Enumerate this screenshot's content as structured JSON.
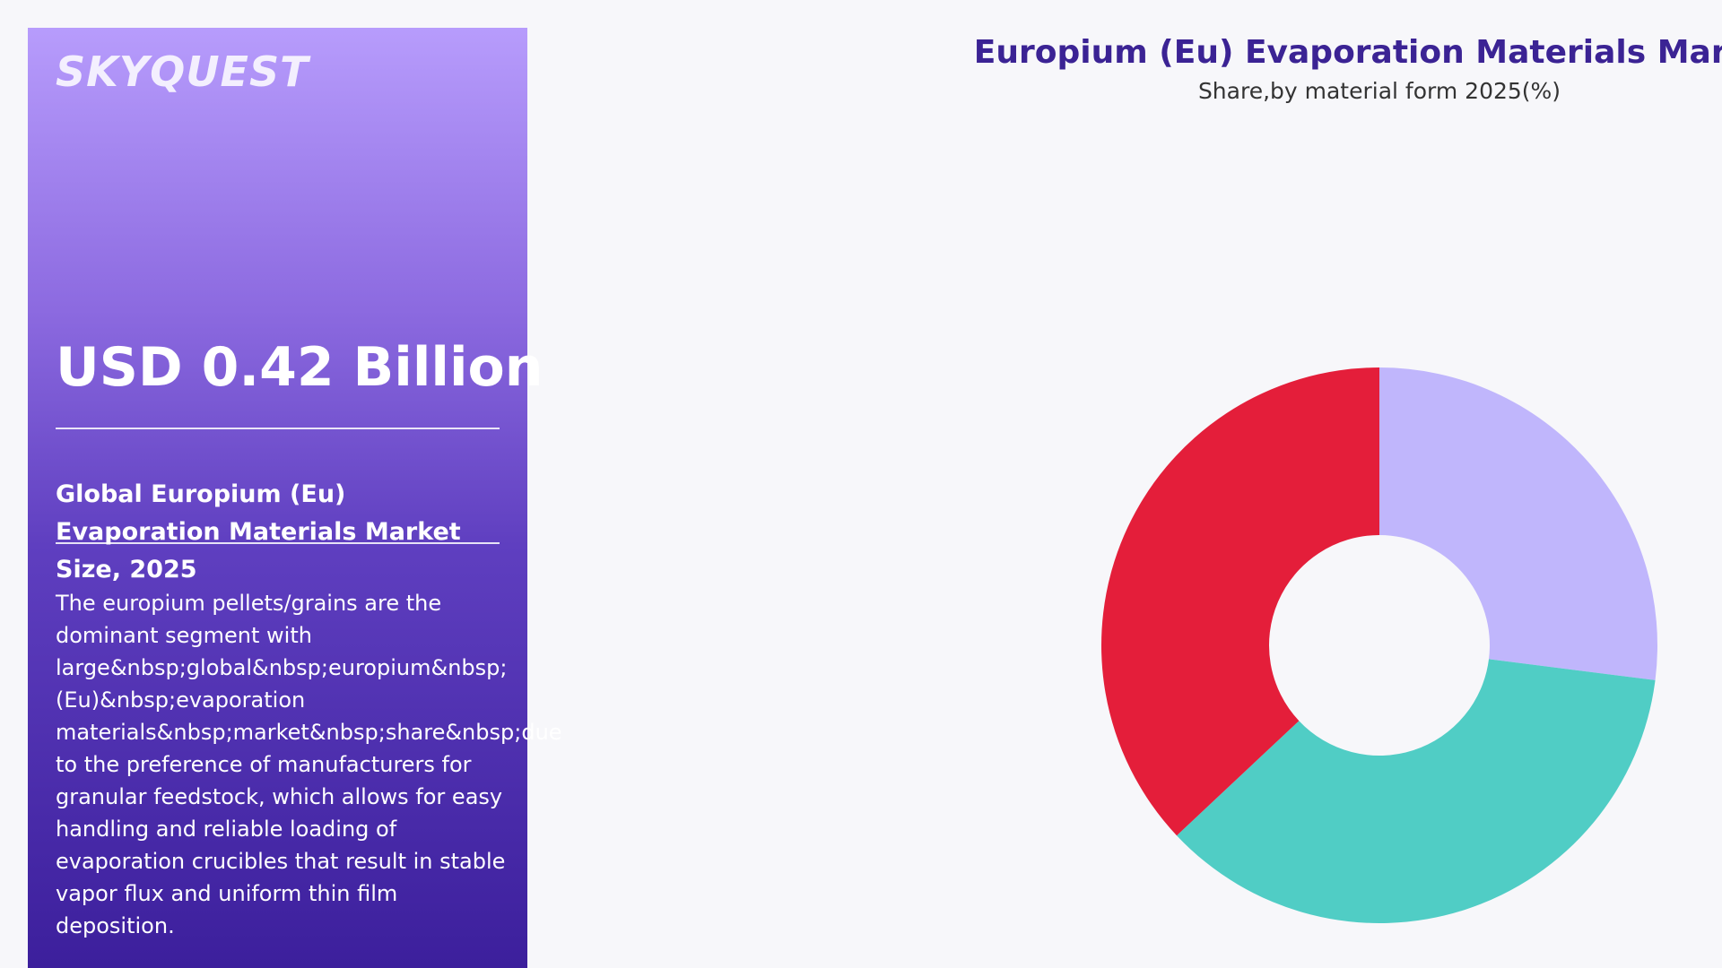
{
  "panel": {
    "logo": "SKYQUEST",
    "value": "USD 0.42 Billion",
    "heading": "Global Europium (Eu) Evaporation Materials Market Size, 2025",
    "description": "The europium pellets/grains are the dominant segment with large&nbsp;global&nbsp;europium&nbsp;(Eu)&nbsp;evaporation materials&nbsp;market&nbsp;share&nbsp;due to the preference of manufacturers for granular feedstock, which allows for easy handling and reliable loading of evaporation crucibles that result in stable vapor flux and uniform thin film deposition."
  },
  "chart_data": {
    "type": "donut",
    "title": "Europium (Eu) Evaporation Materials Market",
    "subtitle": "Share,by material form 2025(%)",
    "values": [
      27,
      36,
      37
    ],
    "colors": [
      "#c0b6fc",
      "#50cdc5",
      "#e41e3a"
    ]
  }
}
